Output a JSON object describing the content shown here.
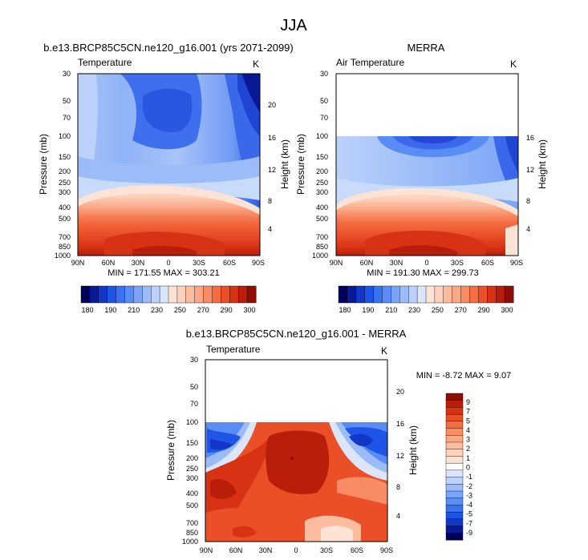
{
  "figure_title": "JJA",
  "colors": {
    "temp_scale": [
      "#00005a",
      "#0a1a96",
      "#1237c8",
      "#1f55e6",
      "#3b72f0",
      "#5a8cf5",
      "#7aa4f7",
      "#9bbcf8",
      "#bcd2fa",
      "#dce6fb",
      "#fbe4d6",
      "#fcd2bc",
      "#fcbd9f",
      "#fba684",
      "#f98c63",
      "#f46e44",
      "#ea4f27",
      "#d73214",
      "#b81e0a",
      "#8e0e05"
    ],
    "diff_scale": [
      "#00005a",
      "#0a1a96",
      "#1237c8",
      "#1f55e6",
      "#3b72f0",
      "#5a8cf5",
      "#7aa4f7",
      "#9bbcf8",
      "#bcd2fa",
      "#dce6fb",
      "#ffffff",
      "#fbe4d6",
      "#fcd2bc",
      "#fcbd9f",
      "#fba684",
      "#f98c63",
      "#f46e44",
      "#ea4f27",
      "#d73214",
      "#b81e0a",
      "#8e0e05"
    ]
  },
  "panels": [
    {
      "title": "b.e13.BRCP85C5CN.ne120_g16.001 (yrs 2071-2099)",
      "left_label": "Temperature",
      "unit": "K",
      "ylabel": "Pressure (mb)",
      "ylabel_right": "Height (km)",
      "min_max": "MIN = 171.55   MAX = 303.21"
    },
    {
      "title": "MERRA",
      "left_label": "Air Temperature",
      "unit": "K",
      "ylabel": "Pressure (mb)",
      "ylabel_right": "Height (km)",
      "min_max": "MIN = 191.30   MAX = 299.73"
    },
    {
      "title": "b.e13.BRCP85C5CN.ne120_g16.001 - MERRA",
      "left_label": "Temperature",
      "unit": "K",
      "ylabel": "Pressure (mb)",
      "ylabel_right": "Height (km)",
      "min_max": "MIN =  -8.72   MAX =   9.07"
    }
  ],
  "chart_data": [
    {
      "type": "heatmap",
      "title": "b.e13.BRCP85C5CN.ne120_g16.001 (yrs 2071-2099)",
      "field": "Temperature",
      "units": "K",
      "x_ticks": [
        "90N",
        "60N",
        "30N",
        "0",
        "30S",
        "60S",
        "90S"
      ],
      "y_ticks": [
        "30",
        "50",
        "70",
        "100",
        "150",
        "200",
        "250",
        "300",
        "400",
        "500",
        "700",
        "850",
        "1000"
      ],
      "y_scale": "log-pressure",
      "height_ticks_km": [
        "20",
        "16",
        "12",
        "8",
        "4"
      ],
      "min": 171.55,
      "max": 303.21,
      "colorbar_ticks": [
        "180",
        "190",
        "210",
        "230",
        "250",
        "270",
        "290",
        "300"
      ]
    },
    {
      "type": "heatmap",
      "title": "MERRA",
      "field": "Air Temperature",
      "units": "K",
      "x_ticks": [
        "90N",
        "60N",
        "30N",
        "0",
        "30S",
        "60S",
        "90S"
      ],
      "y_ticks": [
        "30",
        "50",
        "70",
        "100",
        "150",
        "200",
        "250",
        "300",
        "400",
        "500",
        "700",
        "850",
        "1000"
      ],
      "y_scale": "log-pressure",
      "height_ticks_km": [
        "16",
        "12",
        "8",
        "4"
      ],
      "data_top_pressure": 100,
      "min": 191.3,
      "max": 299.73,
      "colorbar_ticks": [
        "180",
        "190",
        "210",
        "230",
        "250",
        "270",
        "290",
        "300"
      ]
    },
    {
      "type": "heatmap",
      "title": "b.e13.BRCP85C5CN.ne120_g16.001 - MERRA",
      "field": "Temperature",
      "units": "K",
      "x_ticks": [
        "90N",
        "60N",
        "30N",
        "0",
        "30S",
        "60S",
        "90S"
      ],
      "y_ticks": [
        "30",
        "50",
        "70",
        "100",
        "150",
        "200",
        "250",
        "300",
        "400",
        "500",
        "700",
        "850",
        "1000"
      ],
      "y_scale": "log-pressure",
      "height_ticks_km": [
        "20",
        "16",
        "12",
        "8",
        "4"
      ],
      "data_top_pressure": 100,
      "min": -8.72,
      "max": 9.07,
      "colorbar_ticks": [
        "9",
        "7",
        "5",
        "4",
        "3",
        "2",
        "1",
        "0",
        "-1",
        "-2",
        "-3",
        "-4",
        "-5",
        "-7",
        "-9"
      ]
    }
  ]
}
